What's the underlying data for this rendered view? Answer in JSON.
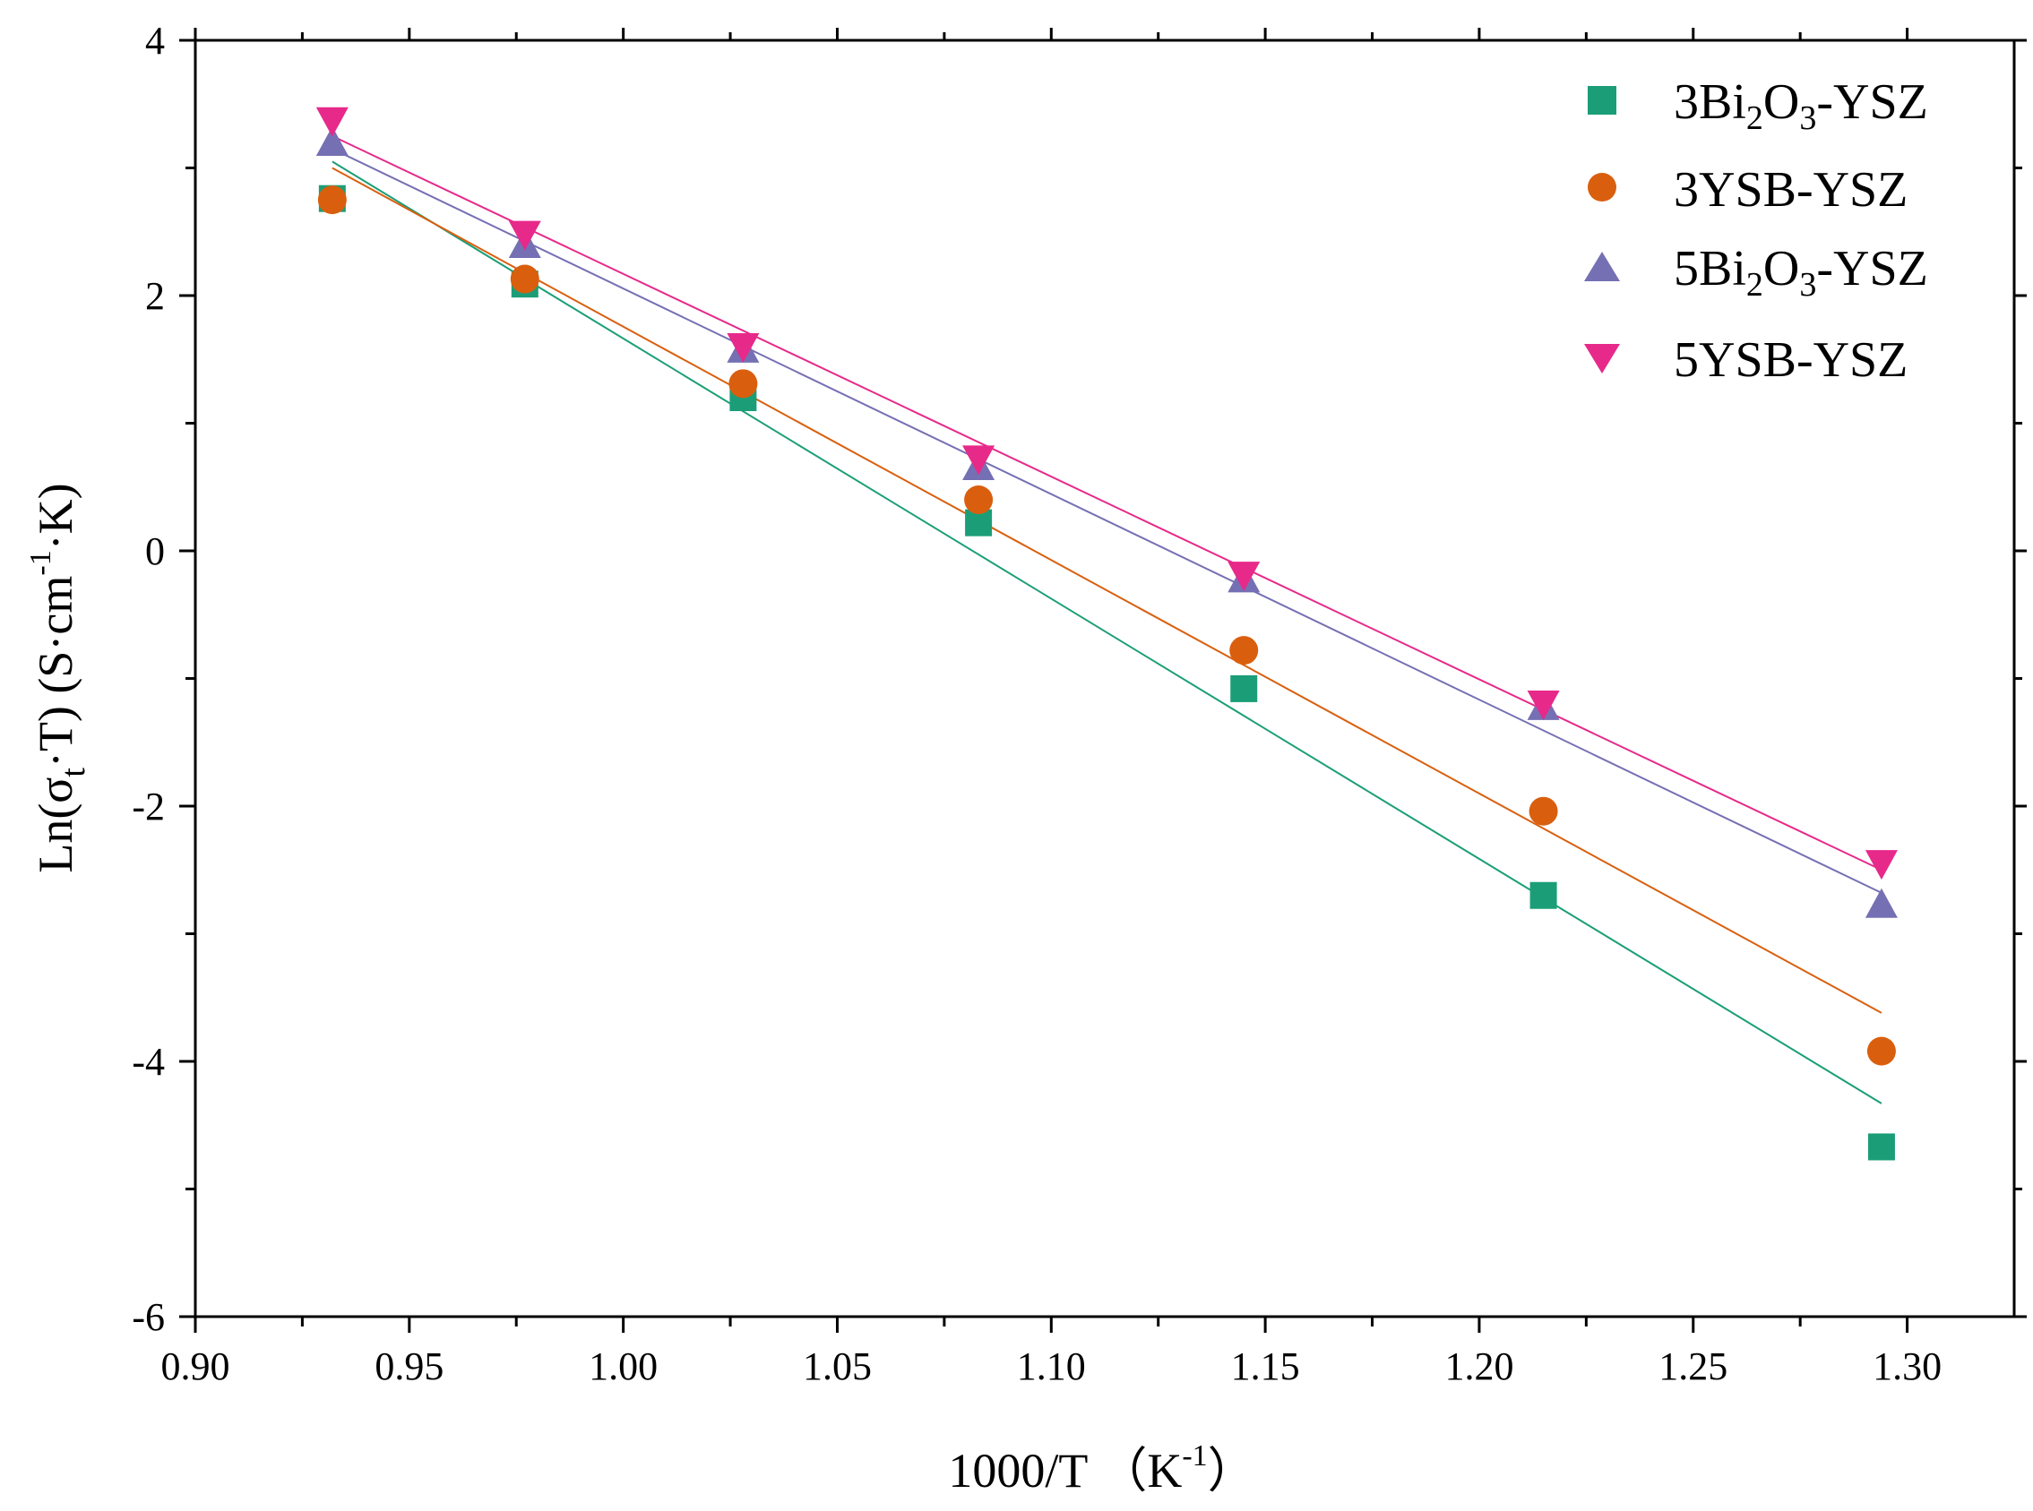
{
  "chart_data": {
    "type": "scatter",
    "title": "",
    "xlabel": "1000/T（K⁻¹）",
    "ylabel": "Ln(σt·T) (S·cm⁻¹·K)",
    "xlim": [
      0.9,
      1.325
    ],
    "ylim": [
      -6,
      4
    ],
    "x_ticks": [
      0.9,
      0.95,
      1.0,
      1.05,
      1.1,
      1.15,
      1.2,
      1.25,
      1.3
    ],
    "x_tick_labels": [
      "0.90",
      "0.95",
      "1.00",
      "1.05",
      "1.10",
      "1.15",
      "1.20",
      "1.25",
      "1.30"
    ],
    "y_ticks": [
      4,
      2,
      0,
      -2,
      -4,
      -6
    ],
    "y_tick_labels": [
      "4",
      "2",
      "0",
      "-2",
      "-4",
      "-6"
    ],
    "grid": false,
    "legend_position": "top-right",
    "series": [
      {
        "name": "3Bi2O3-YSZ",
        "name_main": "3Bi",
        "name_sub1": "2",
        "name_mid": "O",
        "name_sub2": "3",
        "name_tail": "-YSZ",
        "marker": "square",
        "color": "#1b9e77",
        "x": [
          0.932,
          0.977,
          1.028,
          1.083,
          1.145,
          1.215,
          1.294
        ],
        "y": [
          2.76,
          2.09,
          1.2,
          0.22,
          -1.08,
          -2.7,
          -4.67
        ],
        "fit": {
          "x": [
            0.932,
            1.294
          ],
          "y": [
            3.05,
            -4.33
          ]
        }
      },
      {
        "name": "3YSB-YSZ",
        "marker": "circle",
        "color": "#d95f0e",
        "x": [
          0.932,
          0.977,
          1.028,
          1.083,
          1.145,
          1.215,
          1.294
        ],
        "y": [
          2.75,
          2.13,
          1.31,
          0.4,
          -0.78,
          -2.04,
          -3.92
        ],
        "fit": {
          "x": [
            0.932,
            1.294
          ],
          "y": [
            3.0,
            -3.62
          ]
        }
      },
      {
        "name": "5Bi2O3-YSZ",
        "name_main": "5Bi",
        "name_sub1": "2",
        "name_mid": "O",
        "name_sub2": "3",
        "name_tail": "-YSZ",
        "marker": "triangle-up",
        "color": "#7570b3",
        "x": [
          0.932,
          0.977,
          1.028,
          1.083,
          1.145,
          1.215,
          1.294
        ],
        "y": [
          3.2,
          2.4,
          1.58,
          0.66,
          -0.22,
          -1.22,
          -2.77
        ],
        "fit": {
          "x": [
            0.932,
            1.294
          ],
          "y": [
            3.15,
            -2.68
          ]
        }
      },
      {
        "name": "5YSB-YSZ",
        "marker": "triangle-down",
        "color": "#e7298a",
        "x": [
          0.932,
          0.977,
          1.028,
          1.083,
          1.145,
          1.215,
          1.294
        ],
        "y": [
          3.37,
          2.48,
          1.6,
          0.72,
          -0.19,
          -1.2,
          -2.45
        ],
        "fit": {
          "x": [
            0.932,
            1.294
          ],
          "y": [
            3.25,
            -2.5
          ]
        }
      }
    ]
  }
}
